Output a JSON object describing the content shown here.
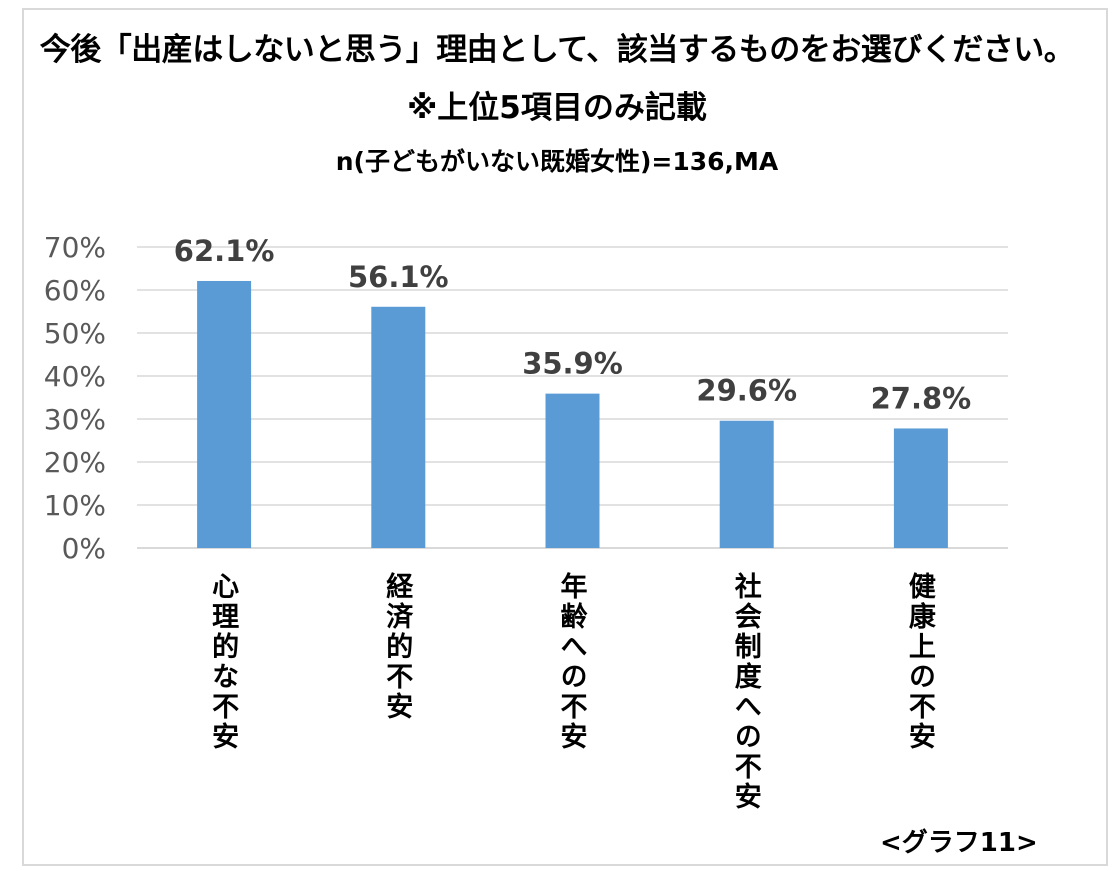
{
  "chart_data": {
    "type": "bar",
    "title": "今後「出産はしないと思う」理由として、該当するものをお選びください。",
    "subtitle": "※上位5項目のみ記載",
    "note": "n(子どもがいない既婚女性)=136,MA",
    "categories": [
      "心理的な不安",
      "経済的不安",
      "年齢への不安",
      "社会制度への不安",
      "健康上の不安"
    ],
    "values": [
      62.1,
      56.1,
      35.9,
      29.6,
      27.8
    ],
    "data_labels": [
      "62.1%",
      "56.1%",
      "35.9%",
      "29.6%",
      "27.8%"
    ],
    "ylim": [
      0,
      70
    ],
    "yticks": [
      "0%",
      "10%",
      "20%",
      "30%",
      "40%",
      "50%",
      "60%",
      "70%"
    ],
    "xlabel": "",
    "ylabel": "",
    "grid": true,
    "bar_color": "#5b9bd5",
    "grid_color": "#d9d9d9"
  },
  "footnote": "<グラフ11>"
}
